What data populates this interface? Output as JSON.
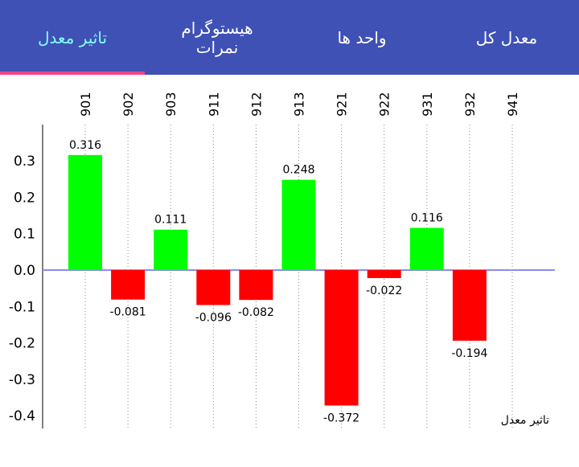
{
  "tabs": [
    {
      "label": "تاثیر معدل",
      "active": true
    },
    {
      "label": "هیستوگرام نمرات",
      "active": false
    },
    {
      "label": "واحد ها",
      "active": false
    },
    {
      "label": "معدل کل",
      "active": false
    }
  ],
  "colors": {
    "toolbar": "#3f51b5",
    "active_tab_text": "#84ffff",
    "indicator": "#ff4081",
    "positive": "#00ff00",
    "negative": "#ff0000",
    "zero_line": "#8c8cf0"
  },
  "chart_data": {
    "type": "bar",
    "categories": [
      "901",
      "902",
      "903",
      "911",
      "912",
      "913",
      "921",
      "922",
      "931",
      "932",
      "941"
    ],
    "values": [
      0.316,
      -0.081,
      0.111,
      -0.096,
      -0.082,
      0.248,
      -0.372,
      -0.022,
      0.116,
      -0.194,
      null
    ],
    "value_labels": [
      "0.316",
      "-0.081",
      "0.111",
      "-0.096",
      "-0.082",
      "0.248",
      "-0.372",
      "-0.022",
      "0.116",
      "-0.194",
      ""
    ],
    "yticks": [
      "0.3",
      "0.2",
      "0.1",
      "0.0",
      "-0.1",
      "-0.2",
      "-0.3",
      "-0.4"
    ],
    "ytick_values": [
      0.3,
      0.2,
      0.1,
      0.0,
      -0.1,
      -0.2,
      -0.3,
      -0.4
    ],
    "ylim": [
      -0.44,
      0.35
    ],
    "legend": "تاثیر معدل",
    "grid": "vertical dotted",
    "x_axis_position": "top"
  }
}
